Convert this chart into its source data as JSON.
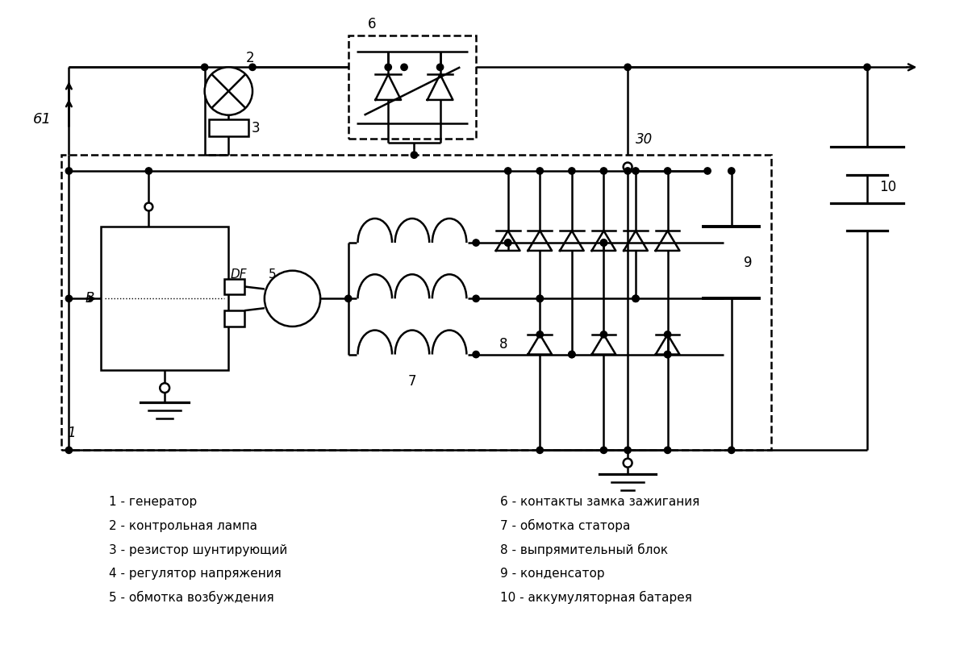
{
  "bg": "#ffffff",
  "lw": 1.8,
  "legend_left": [
    "1 - генератор",
    "2 - контрольная лампа",
    "3 - резистор шунтирующий",
    "4 - регулятор напряжения",
    "5 - обмотка возбуждения"
  ],
  "legend_right": [
    "6 - контакты замка зажигания",
    "7 - обмотка статора",
    "8 - выпрямительный блок",
    "9 - конденсатор",
    "10 - аккумуляторная батарея"
  ]
}
